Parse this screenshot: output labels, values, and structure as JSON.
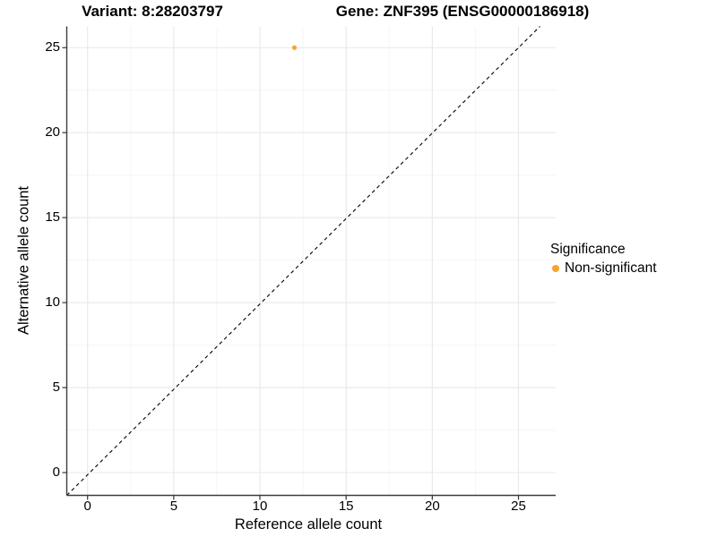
{
  "header": {
    "variant_title": "Variant: 8:28203797",
    "gene_title": "Gene: ZNF395 (ENSG00000186918)"
  },
  "chart_data": {
    "type": "scatter",
    "title": "Variant: 8:28203797 | Gene: ZNF395 (ENSG00000186918)",
    "xlabel": "Reference allele count",
    "ylabel": "Alternative allele count",
    "x_ticks": [
      0,
      5,
      10,
      15,
      20,
      25
    ],
    "y_ticks": [
      0,
      5,
      10,
      15,
      20,
      25
    ],
    "x_minor_ticks": [
      2.5,
      7.5,
      12.5,
      17.5,
      22.5
    ],
    "y_minor_ticks": [
      2.5,
      7.5,
      12.5,
      17.5,
      22.5
    ],
    "xlim": [
      -1.25,
      27.2
    ],
    "ylim": [
      -1.35,
      26.25
    ],
    "grid": {
      "major": true,
      "minor": true,
      "major_color": "#E8E8E8",
      "minor_color": "#F4F4F4"
    },
    "reference_line": {
      "type": "identity y=x",
      "style": "dashed",
      "color": "#000000"
    },
    "series": [
      {
        "name": "Non-significant",
        "color": "#F8A42E",
        "points": [
          {
            "x": 12,
            "y": 25
          }
        ]
      }
    ],
    "legend": {
      "title": "Significance",
      "position": "right",
      "items": [
        {
          "label": "Non-significant",
          "color": "#F8A42E"
        }
      ]
    },
    "colors": {
      "axis_line": "#3c3c3c",
      "tick": "#333333",
      "text": "#000000"
    }
  }
}
